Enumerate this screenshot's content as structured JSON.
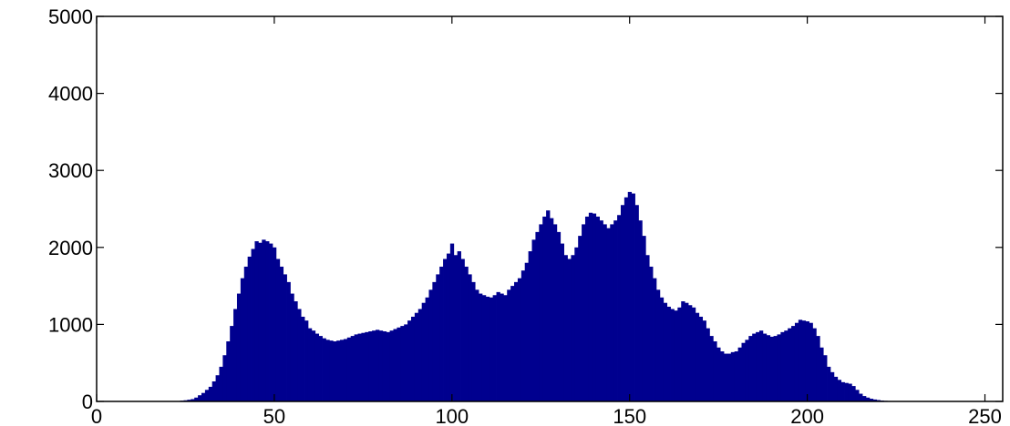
{
  "chart_data": {
    "type": "bar",
    "title": "",
    "xlabel": "",
    "ylabel": "",
    "xlim": [
      0,
      255
    ],
    "ylim": [
      0,
      5000
    ],
    "grid": false,
    "bar_color": "#00008f",
    "x_ticks": [
      0,
      50,
      100,
      150,
      200,
      250
    ],
    "y_ticks": [
      0,
      1000,
      2000,
      3000,
      4000,
      5000
    ],
    "x_tick_labels": [
      "0",
      "50",
      "100",
      "150",
      "200",
      "250"
    ],
    "y_tick_labels": [
      "0",
      "1000",
      "2000",
      "3000",
      "4000",
      "5000"
    ],
    "series": [
      {
        "x_start": 0,
        "bin_width": 1,
        "values": [
          0,
          0,
          0,
          0,
          0,
          0,
          0,
          0,
          0,
          0,
          0,
          0,
          0,
          0,
          0,
          0,
          0,
          0,
          0,
          0,
          0,
          0,
          0,
          5,
          10,
          15,
          22,
          30,
          50,
          80,
          110,
          150,
          190,
          260,
          340,
          450,
          600,
          780,
          980,
          1200,
          1400,
          1600,
          1750,
          1880,
          1980,
          2080,
          2060,
          2100,
          2080,
          2050,
          2000,
          1850,
          1750,
          1650,
          1550,
          1400,
          1300,
          1200,
          1100,
          1050,
          950,
          920,
          880,
          850,
          820,
          800,
          790,
          780,
          790,
          800,
          810,
          830,
          850,
          870,
          880,
          890,
          900,
          910,
          920,
          930,
          920,
          910,
          900,
          920,
          940,
          960,
          980,
          1000,
          1050,
          1100,
          1150,
          1200,
          1280,
          1350,
          1450,
          1550,
          1650,
          1750,
          1850,
          1920,
          2050,
          1900,
          1950,
          1850,
          1750,
          1650,
          1550,
          1450,
          1400,
          1380,
          1360,
          1350,
          1380,
          1420,
          1400,
          1380,
          1450,
          1500,
          1550,
          1600,
          1700,
          1800,
          1950,
          2100,
          2200,
          2300,
          2400,
          2480,
          2380,
          2300,
          2200,
          2050,
          1900,
          1850,
          1900,
          2000,
          2150,
          2300,
          2400,
          2450,
          2440,
          2400,
          2350,
          2300,
          2250,
          2300,
          2350,
          2420,
          2550,
          2650,
          2720,
          2700,
          2550,
          2350,
          2150,
          1900,
          1750,
          1600,
          1450,
          1350,
          1280,
          1230,
          1200,
          1180,
          1220,
          1300,
          1280,
          1250,
          1220,
          1150,
          1100,
          1050,
          950,
          850,
          780,
          700,
          650,
          620,
          620,
          640,
          650,
          700,
          760,
          800,
          850,
          880,
          900,
          920,
          880,
          860,
          840,
          850,
          870,
          900,
          920,
          950,
          980,
          1020,
          1060,
          1050,
          1040,
          1020,
          950,
          850,
          700,
          600,
          450,
          380,
          320,
          280,
          250,
          240,
          230,
          200,
          150,
          100,
          70,
          50,
          35,
          25,
          18,
          12,
          8,
          6,
          5,
          4,
          3,
          3,
          3,
          3,
          3,
          4,
          3,
          3,
          2,
          2,
          2,
          2,
          1,
          1,
          0,
          0
        ]
      }
    ]
  }
}
